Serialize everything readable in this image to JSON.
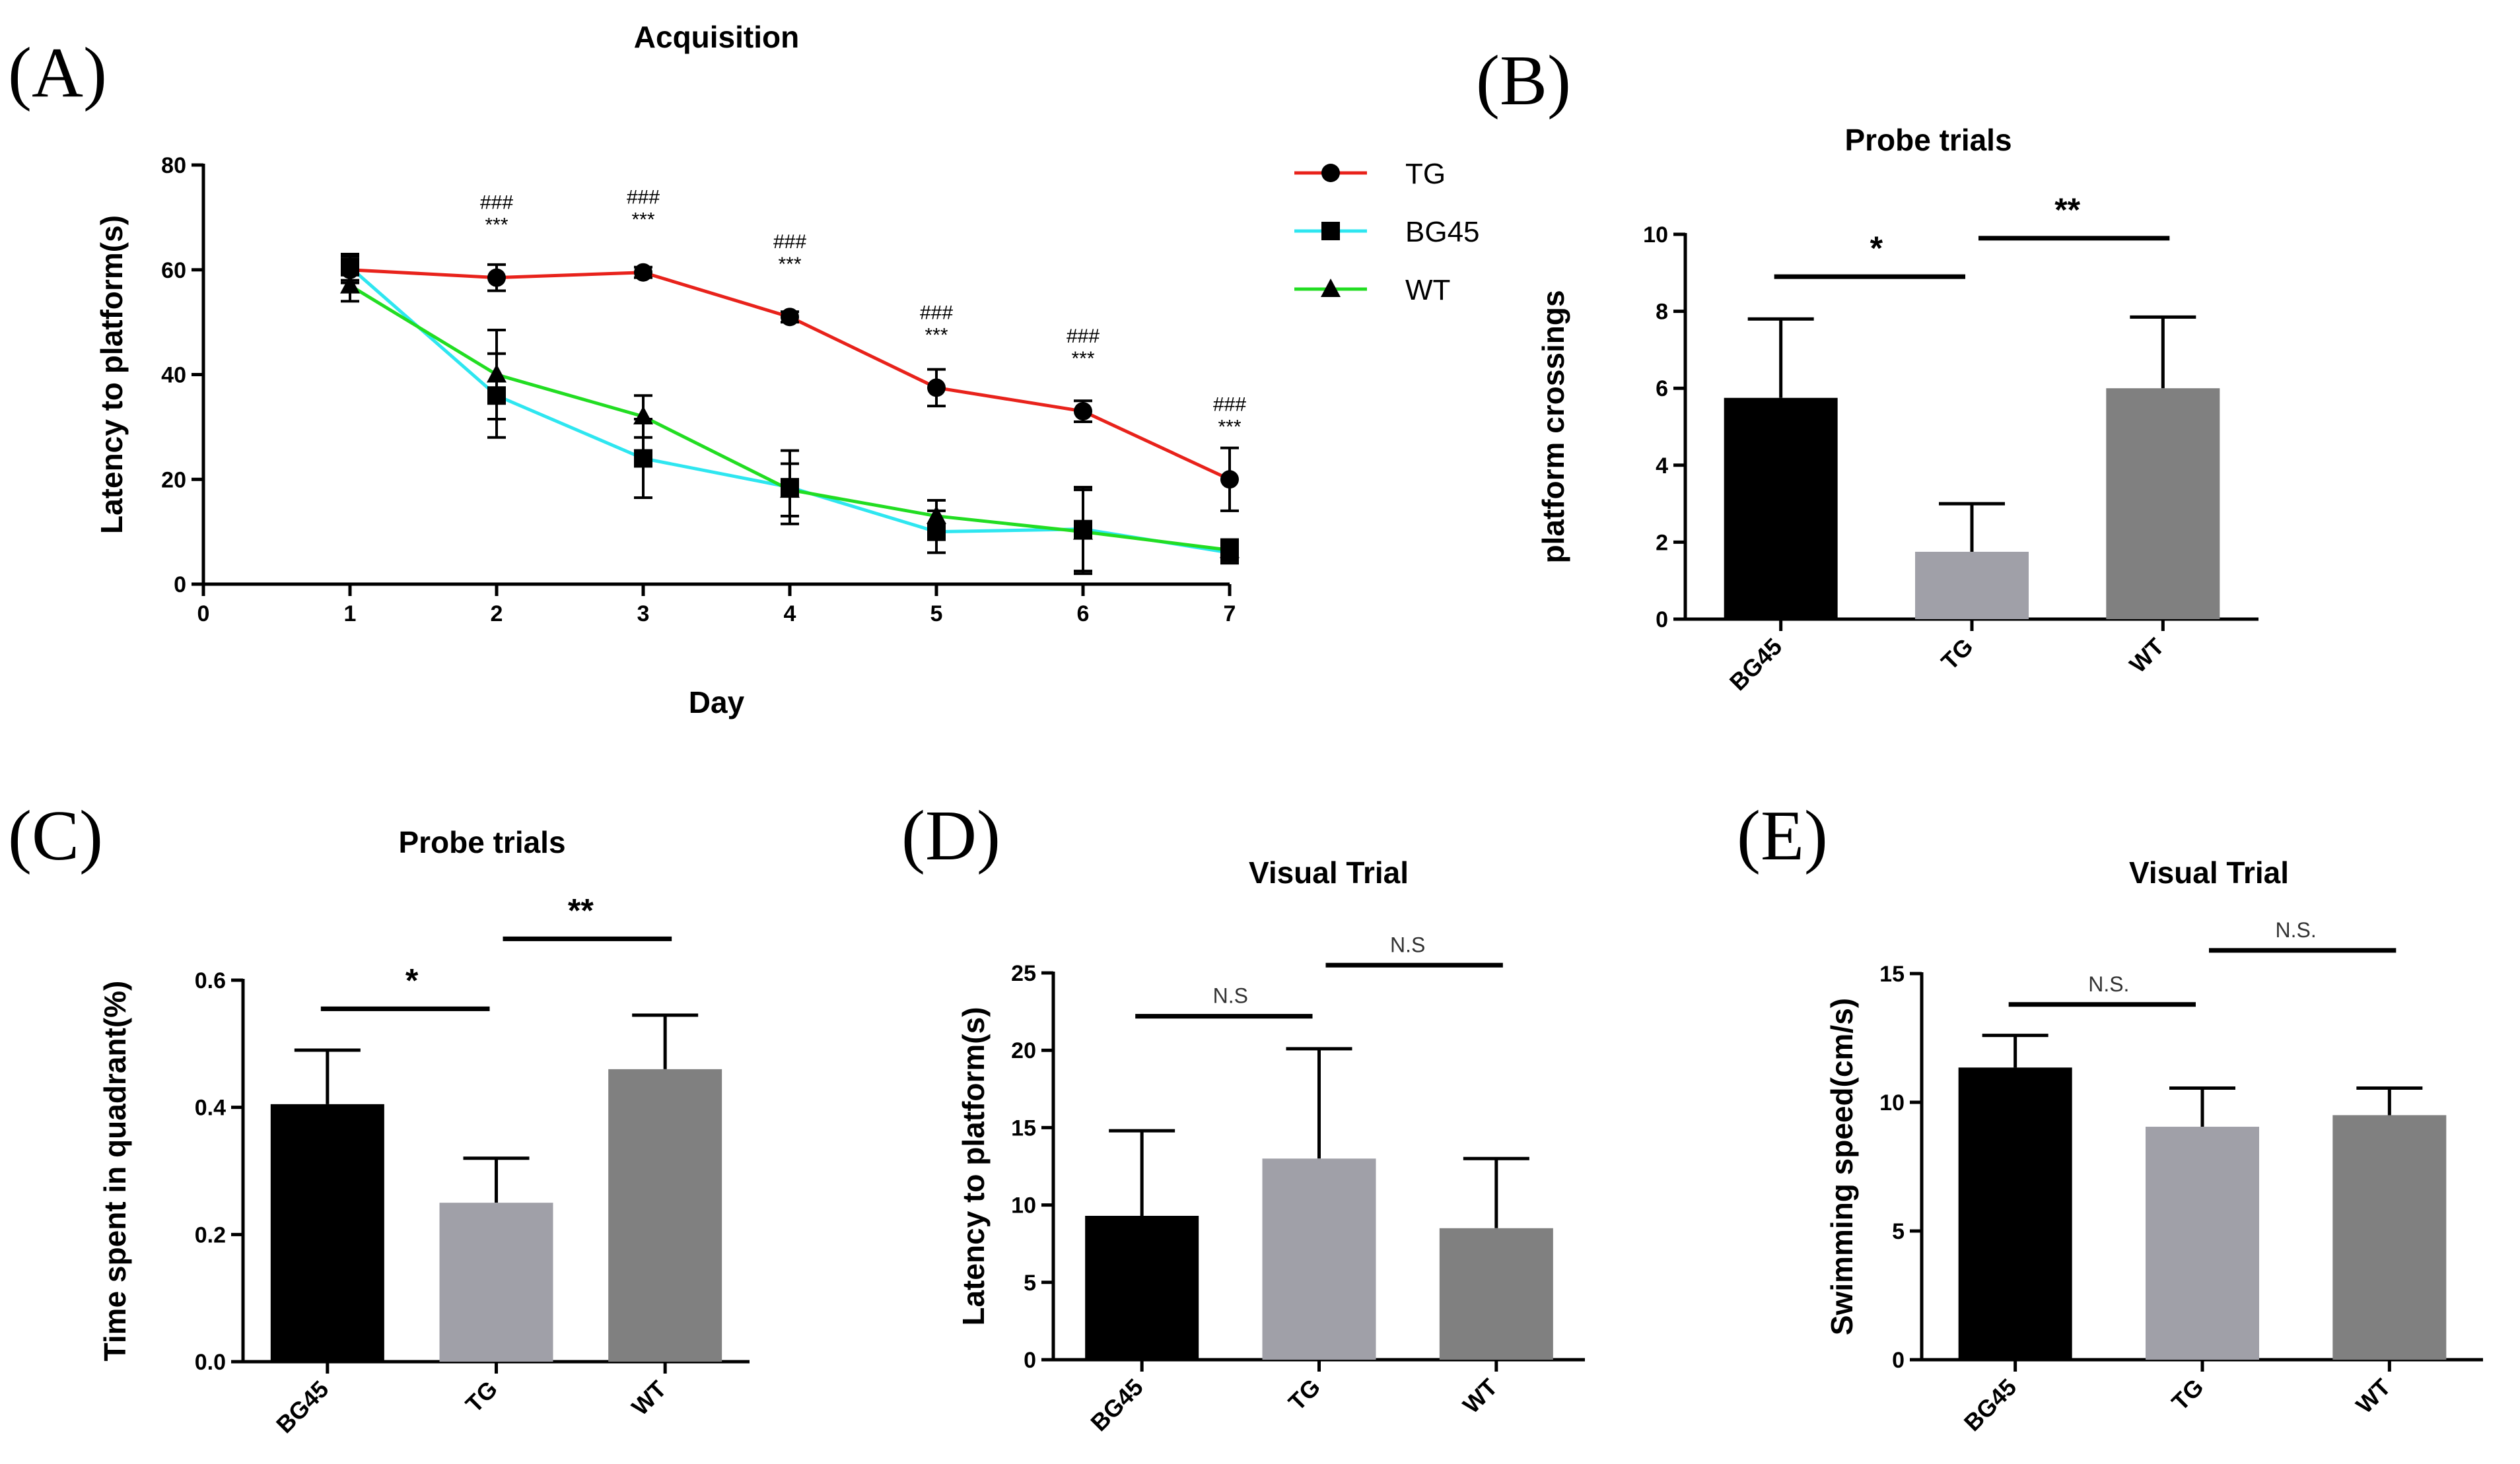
{
  "figure": {
    "panel_labels": [
      "(A)",
      "(B)",
      "(C)",
      "(D)",
      "(E)"
    ]
  },
  "chart_data": [
    {
      "id": "A",
      "type": "line",
      "title": "Acquisition",
      "xlabel": "Day",
      "ylabel": "Latency to platform(s)",
      "xlim": [
        0,
        7
      ],
      "ylim": [
        0,
        80
      ],
      "xticks": [
        0,
        1,
        2,
        3,
        4,
        5,
        6,
        7
      ],
      "yticks": [
        0,
        20,
        40,
        60,
        80
      ],
      "legend_position": "top-right",
      "series": [
        {
          "name": "TG",
          "color": "#e8221b",
          "marker": "circle",
          "x": [
            1,
            2,
            3,
            4,
            5,
            6,
            7
          ],
          "values": [
            60,
            58.5,
            59.5,
            51,
            37.5,
            33,
            20
          ],
          "errors": [
            2.5,
            2.5,
            1,
            1,
            3.5,
            2,
            6
          ]
        },
        {
          "name": "BG45",
          "color": "#2ee6f0",
          "marker": "square",
          "x": [
            1,
            2,
            3,
            4,
            5,
            6,
            7
          ],
          "values": [
            60.5,
            36,
            24,
            18.5,
            10,
            10.5,
            6
          ],
          "errors": [
            2.5,
            8,
            7.5,
            7,
            4,
            8,
            2
          ]
        },
        {
          "name": "WT",
          "color": "#22dd22",
          "marker": "triangle",
          "x": [
            1,
            2,
            3,
            4,
            5,
            6,
            7
          ],
          "values": [
            57,
            40,
            32,
            18,
            13,
            10,
            6.5
          ],
          "errors": [
            3,
            8.5,
            4,
            5,
            3,
            8,
            2
          ]
        }
      ],
      "annotations": [
        {
          "x": 2,
          "y": 58.5,
          "lines": [
            "###",
            "***"
          ]
        },
        {
          "x": 3,
          "y": 59.5,
          "lines": [
            "###",
            "***"
          ]
        },
        {
          "x": 4,
          "y": 51,
          "lines": [
            "###",
            "***"
          ]
        },
        {
          "x": 5,
          "y": 37.5,
          "lines": [
            "###",
            "***"
          ]
        },
        {
          "x": 6,
          "y": 33,
          "lines": [
            "###",
            "***"
          ]
        },
        {
          "x": 7,
          "y": 20,
          "lines": [
            "###",
            "***"
          ]
        }
      ]
    },
    {
      "id": "B",
      "type": "bar",
      "title": "Probe trials",
      "xlabel": "",
      "ylabel": "platform crossings",
      "ylim": [
        0,
        10
      ],
      "yticks": [
        0,
        2,
        4,
        6,
        8,
        10
      ],
      "categories": [
        "BG45",
        "TG",
        "WT"
      ],
      "values": [
        5.75,
        1.75,
        6
      ],
      "errors": [
        2.05,
        1.25,
        1.85
      ],
      "colors": [
        "#000000",
        "#a0a0a8",
        "#808080"
      ],
      "significance": [
        {
          "from": 0,
          "to": 1,
          "label": "*",
          "y": 8.9
        },
        {
          "from": 1,
          "to": 2,
          "label": "**",
          "y": 9.9
        }
      ]
    },
    {
      "id": "C",
      "type": "bar",
      "title": "Probe trials",
      "xlabel": "",
      "ylabel": "Time spent in quadrant(%)",
      "ylim": [
        0,
        0.6
      ],
      "yticks": [
        0.0,
        0.2,
        0.4,
        0.6
      ],
      "ytick_labels": [
        "0.0",
        "0.2",
        "0.4",
        "0.6"
      ],
      "categories": [
        "BG45",
        "TG",
        "WT"
      ],
      "values": [
        0.405,
        0.25,
        0.46
      ],
      "errors": [
        0.085,
        0.07,
        0.085
      ],
      "colors": [
        "#000000",
        "#a0a0a8",
        "#808080"
      ],
      "significance": [
        {
          "from": 0,
          "to": 1,
          "label": "*",
          "y": 0.555
        },
        {
          "from": 1,
          "to": 2,
          "label": "**",
          "y": 0.665
        }
      ]
    },
    {
      "id": "D",
      "type": "bar",
      "title": "Visual Trial",
      "xlabel": "",
      "ylabel": "Latency to platform(s)",
      "ylim": [
        0,
        25
      ],
      "yticks": [
        0,
        5,
        10,
        15,
        20,
        25
      ],
      "categories": [
        "BG45",
        "TG",
        "WT"
      ],
      "values": [
        9.3,
        13,
        8.5
      ],
      "errors": [
        5.5,
        7.1,
        4.5
      ],
      "colors": [
        "#000000",
        "#a0a0a8",
        "#808080"
      ],
      "significance": [
        {
          "from": 0,
          "to": 1,
          "label": "N.S",
          "y": 22.2
        },
        {
          "from": 1,
          "to": 2,
          "label": "N.S",
          "y": 25.5
        }
      ]
    },
    {
      "id": "E",
      "type": "bar",
      "title": "Visual Trial",
      "xlabel": "",
      "ylabel": "Swimming speed(cm/s)",
      "ylim": [
        0,
        15
      ],
      "yticks": [
        0,
        5,
        10,
        15
      ],
      "categories": [
        "BG45",
        "TG",
        "WT"
      ],
      "values": [
        11.35,
        9.05,
        9.5
      ],
      "errors": [
        1.25,
        1.5,
        1.05
      ],
      "colors": [
        "#000000",
        "#a0a0a8",
        "#808080"
      ],
      "significance": [
        {
          "from": 0,
          "to": 1,
          "label": "N.S.",
          "y": 13.8
        },
        {
          "from": 1,
          "to": 2,
          "label": "N.S.",
          "y": 15.9
        }
      ]
    }
  ]
}
